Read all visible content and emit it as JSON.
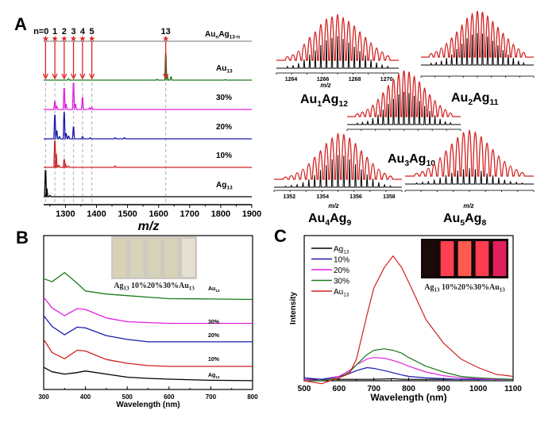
{
  "chart_data": [
    {
      "panel": "A",
      "type": "line",
      "subtype": "stacked mass spectra",
      "xlabel": "m/z",
      "xlim": [
        1230,
        1900
      ],
      "xticks": [
        "1300",
        "1400",
        "1500",
        "1600",
        "1700",
        "1800",
        "1900"
      ],
      "header_label": {
        "base": "Au",
        "sub1": "n",
        "mid": "Ag",
        "sub2": "13-n"
      },
      "markers": [
        {
          "label": "n=0",
          "mz": 1236
        },
        {
          "label": "1",
          "mz": 1266
        },
        {
          "label": "2",
          "mz": 1296
        },
        {
          "label": "3",
          "mz": 1326
        },
        {
          "label": "4",
          "mz": 1355
        },
        {
          "label": "5",
          "mz": 1385
        },
        {
          "label": "13",
          "mz": 1623
        }
      ],
      "series": [
        {
          "name": "Au13",
          "label": {
            "base": "Au",
            "sub": "13"
          },
          "color": "#1a7a1a",
          "peaks": [
            [
              1310,
              0.05
            ],
            [
              1595,
              0.03
            ],
            [
              1623,
              1.0
            ],
            [
              1628,
              0.15
            ],
            [
              1640,
              0.12
            ],
            [
              1815,
              0.02
            ]
          ]
        },
        {
          "name": "30%",
          "label": {
            "base": "30%",
            "sub": ""
          },
          "color": "#e020e0",
          "peaks": [
            [
              1266,
              0.3
            ],
            [
              1272,
              0.12
            ],
            [
              1296,
              0.8
            ],
            [
              1302,
              0.2
            ],
            [
              1326,
              1.0
            ],
            [
              1332,
              0.2
            ],
            [
              1355,
              0.45
            ],
            [
              1378,
              0.06
            ],
            [
              1385,
              0.08
            ]
          ]
        },
        {
          "name": "20%",
          "label": {
            "base": "20%",
            "sub": ""
          },
          "color": "#1a1ab0",
          "peaks": [
            [
              1266,
              0.9
            ],
            [
              1272,
              0.3
            ],
            [
              1281,
              0.08
            ],
            [
              1296,
              1.0
            ],
            [
              1302,
              0.2
            ],
            [
              1310,
              0.1
            ],
            [
              1326,
              0.45
            ],
            [
              1355,
              0.08
            ],
            [
              1380,
              0.04
            ],
            [
              1460,
              0.04
            ],
            [
              1490,
              0.04
            ]
          ]
        },
        {
          "name": "10%",
          "label": {
            "base": "10%",
            "sub": ""
          },
          "color": "#d02020",
          "peaks": [
            [
              1266,
              1.0
            ],
            [
              1270,
              0.5
            ],
            [
              1278,
              0.08
            ],
            [
              1296,
              0.3
            ],
            [
              1300,
              0.12
            ],
            [
              1310,
              0.05
            ],
            [
              1460,
              0.05
            ]
          ]
        },
        {
          "name": "Ag13",
          "label": {
            "base": "Ag",
            "sub": "13"
          },
          "color": "#000000",
          "peaks": [
            [
              1236,
              1.0
            ],
            [
              1240,
              0.3
            ],
            [
              1250,
              0.05
            ]
          ]
        }
      ]
    },
    {
      "panel": "A-insets",
      "type": "bar",
      "subtype": "isotope patterns (red: experimental, black: simulated)",
      "insets": [
        {
          "label": {
            "base1": "Au",
            "sub1": "1",
            "base2": "Ag",
            "sub2": "12"
          },
          "xlabel": "m/z",
          "xticks": [
            "1264",
            "1266",
            "1268",
            "1270"
          ],
          "red": [
            0.08,
            0.12,
            0.2,
            0.35,
            0.5,
            0.62,
            0.78,
            0.9,
            0.95,
            1.0,
            0.93,
            0.85,
            0.75,
            0.62,
            0.5,
            0.38,
            0.27,
            0.18,
            0.1
          ],
          "black": [
            0.05,
            0.08,
            0.14,
            0.25,
            0.38,
            0.5,
            0.65,
            0.78,
            0.85,
            0.9,
            0.82,
            0.72,
            0.6,
            0.48,
            0.36,
            0.25,
            0.16,
            0.1,
            0.05
          ]
        },
        {
          "label": {
            "base1": "Au",
            "sub1": "2",
            "base2": "Ag",
            "sub2": "11"
          },
          "xlabel": "",
          "xticks": [],
          "red": [
            0.08,
            0.12,
            0.2,
            0.3,
            0.42,
            0.55,
            0.7,
            0.85,
            0.95,
            1.0,
            0.98,
            0.9,
            0.78,
            0.65,
            0.52,
            0.4,
            0.28,
            0.18,
            0.1
          ],
          "black": [
            0.05,
            0.08,
            0.12,
            0.2,
            0.3,
            0.45,
            0.6,
            0.75,
            0.85,
            0.9,
            0.88,
            0.8,
            0.68,
            0.55,
            0.42,
            0.3,
            0.2,
            0.12,
            0.06
          ]
        },
        {
          "label": {
            "base1": "Au",
            "sub1": "3",
            "base2": "Ag",
            "sub2": "10"
          },
          "xlabel": "",
          "xticks": [],
          "red": [
            0.06,
            0.1,
            0.16,
            0.25,
            0.38,
            0.52,
            0.68,
            0.82,
            0.93,
            1.0,
            0.97,
            0.88,
            0.76,
            0.62,
            0.48,
            0.35,
            0.24,
            0.15,
            0.08
          ],
          "black": [
            0.04,
            0.06,
            0.1,
            0.18,
            0.28,
            0.42,
            0.58,
            0.72,
            0.85,
            0.92,
            0.88,
            0.8,
            0.66,
            0.52,
            0.38,
            0.26,
            0.16,
            0.09,
            0.05
          ]
        },
        {
          "label": {
            "base1": "Au",
            "sub1": "4",
            "base2": "Ag",
            "sub2": "9"
          },
          "xlabel": "m/z",
          "xticks": [
            "1352",
            "1354",
            "1356",
            "1358"
          ],
          "red": [
            0.05,
            0.08,
            0.14,
            0.22,
            0.34,
            0.48,
            0.62,
            0.78,
            0.9,
            1.0,
            0.98,
            0.9,
            0.78,
            0.62,
            0.48,
            0.34,
            0.22,
            0.13,
            0.07
          ],
          "black": [
            0.03,
            0.05,
            0.08,
            0.14,
            0.22,
            0.34,
            0.48,
            0.62,
            0.78,
            0.9,
            0.88,
            0.78,
            0.64,
            0.5,
            0.36,
            0.24,
            0.14,
            0.08,
            0.04
          ]
        },
        {
          "label": {
            "base1": "Au",
            "sub1": "5",
            "base2": "Ag",
            "sub2": "8"
          },
          "xlabel": "m/z",
          "xticks": [],
          "red": [
            0.06,
            0.1,
            0.17,
            0.27,
            0.4,
            0.55,
            0.7,
            0.84,
            0.95,
            1.0,
            0.96,
            0.86,
            0.72,
            0.58,
            0.44,
            0.32,
            0.22,
            0.14,
            0.08
          ],
          "black": [
            0.03,
            0.05,
            0.08,
            0.12,
            0.18,
            0.25,
            0.32,
            0.38,
            0.42,
            0.44,
            0.42,
            0.37,
            0.3,
            0.24,
            0.18,
            0.12,
            0.08,
            0.05,
            0.03
          ]
        }
      ]
    },
    {
      "panel": "B",
      "type": "line",
      "subtype": "stacked UV-vis absorption",
      "xlabel": "Wavelength (nm)",
      "xlim": [
        300,
        800
      ],
      "ylim": [
        0,
        10
      ],
      "xticks": [
        "300",
        "400",
        "500",
        "600",
        "700",
        "800"
      ],
      "inset_caption": [
        {
          "t": "Ag",
          "s": "13"
        },
        {
          "t": " 10%",
          "s": ""
        },
        {
          "t": "20%",
          "s": ""
        },
        {
          "t": "30%",
          "s": ""
        },
        {
          "t": "Au",
          "s": "13"
        }
      ],
      "inset_vial_colors": [
        "#d9d2b4",
        "#d6d4bb",
        "#d4d2b8",
        "#d8d2b6",
        "#e4e0d2"
      ],
      "x": [
        300,
        320,
        350,
        380,
        400,
        450,
        500,
        550,
        600,
        700,
        800
      ],
      "series": [
        {
          "name": "Au13",
          "label": {
            "base": "Au",
            "sub": "13"
          },
          "color": "#1a7a1a",
          "values": [
            7.2,
            7.0,
            7.6,
            6.9,
            6.4,
            6.2,
            6.1,
            6.0,
            5.9,
            5.88,
            5.85
          ]
        },
        {
          "name": "30%",
          "label": {
            "base": "30%",
            "sub": ""
          },
          "color": "#e020e0",
          "values": [
            6.0,
            5.3,
            4.8,
            5.25,
            5.2,
            4.65,
            4.4,
            4.35,
            4.3,
            4.3,
            4.3
          ]
        },
        {
          "name": "20%",
          "label": {
            "base": "20%",
            "sub": ""
          },
          "color": "#1a1ab0",
          "values": [
            4.8,
            4.1,
            3.55,
            4.05,
            4.0,
            3.5,
            3.25,
            3.1,
            3.1,
            3.1,
            3.1
          ]
        },
        {
          "name": "10%",
          "label": {
            "base": "10%",
            "sub": ""
          },
          "color": "#d02020",
          "values": [
            3.25,
            2.4,
            2.0,
            2.55,
            2.5,
            1.95,
            1.7,
            1.55,
            1.5,
            1.5,
            1.5
          ]
        },
        {
          "name": "Ag13",
          "label": {
            "base": "Ag",
            "sub": "13"
          },
          "color": "#000000",
          "values": [
            1.44,
            1.15,
            1.0,
            1.1,
            1.2,
            1.0,
            0.8,
            0.72,
            0.67,
            0.6,
            0.57
          ]
        }
      ]
    },
    {
      "panel": "C",
      "type": "line",
      "subtype": "photoluminescence",
      "xlabel": "Wavelength (nm)",
      "ylabel": "Intensity",
      "xlim": [
        500,
        1100
      ],
      "ylim": [
        0,
        1
      ],
      "xticks": [
        "500",
        "600",
        "700",
        "800",
        "900",
        "1000",
        "1100"
      ],
      "legend_position": "top-left",
      "inset_caption": [
        {
          "t": "Ag",
          "s": "13"
        },
        {
          "t": " 10%",
          "s": ""
        },
        {
          "t": "20%",
          "s": ""
        },
        {
          "t": "30%",
          "s": ""
        },
        {
          "t": "Au",
          "s": "13"
        }
      ],
      "inset_vial_colors": [
        "#1a0a0a",
        "#ff4050",
        "#ff5a50",
        "#ff3c50",
        "#e0205a"
      ],
      "x": [
        500,
        550,
        600,
        630,
        650,
        680,
        700,
        730,
        755,
        780,
        800,
        850,
        900,
        950,
        1000,
        1050,
        1100
      ],
      "series": [
        {
          "name": "Ag13",
          "label": {
            "base": "Ag",
            "sub": "13"
          },
          "color": "#000000",
          "values": [
            0.01,
            0.01,
            0.01,
            0.01,
            0.01,
            0.01,
            0.01,
            0.012,
            0.015,
            0.01,
            0.01,
            0.01,
            0.01,
            0.01,
            0.01,
            0.01,
            0.01
          ]
        },
        {
          "name": "10%",
          "label": {
            "base": "10%",
            "sub": ""
          },
          "color": "#1a1ab0",
          "values": [
            0.02,
            0.01,
            0.03,
            0.05,
            0.07,
            0.09,
            0.085,
            0.07,
            0.055,
            0.04,
            0.03,
            0.02,
            0.015,
            0.01,
            0.01,
            0.01,
            0.01
          ]
        },
        {
          "name": "20%",
          "label": {
            "base": "20%",
            "sub": ""
          },
          "color": "#e020e0",
          "values": [
            0.01,
            0.0,
            0.03,
            0.07,
            0.11,
            0.15,
            0.16,
            0.155,
            0.14,
            0.12,
            0.1,
            0.06,
            0.035,
            0.02,
            0.015,
            0.01,
            0.01
          ]
        },
        {
          "name": "30%",
          "label": {
            "base": "30%",
            "sub": ""
          },
          "color": "#1a7a1a",
          "values": [
            0.0,
            0.0,
            0.02,
            0.06,
            0.11,
            0.18,
            0.21,
            0.22,
            0.21,
            0.19,
            0.16,
            0.1,
            0.06,
            0.03,
            0.02,
            0.015,
            0.01
          ]
        },
        {
          "name": "Au13",
          "label": {
            "base": "Au",
            "sub": "13"
          },
          "color": "#d02020",
          "values": [
            0.0,
            -0.02,
            0.02,
            0.05,
            0.15,
            0.45,
            0.64,
            0.78,
            0.86,
            0.78,
            0.68,
            0.42,
            0.26,
            0.15,
            0.09,
            0.045,
            0.03
          ]
        }
      ]
    }
  ],
  "panel_labels": {
    "a": "A",
    "b": "B",
    "c": "C"
  }
}
